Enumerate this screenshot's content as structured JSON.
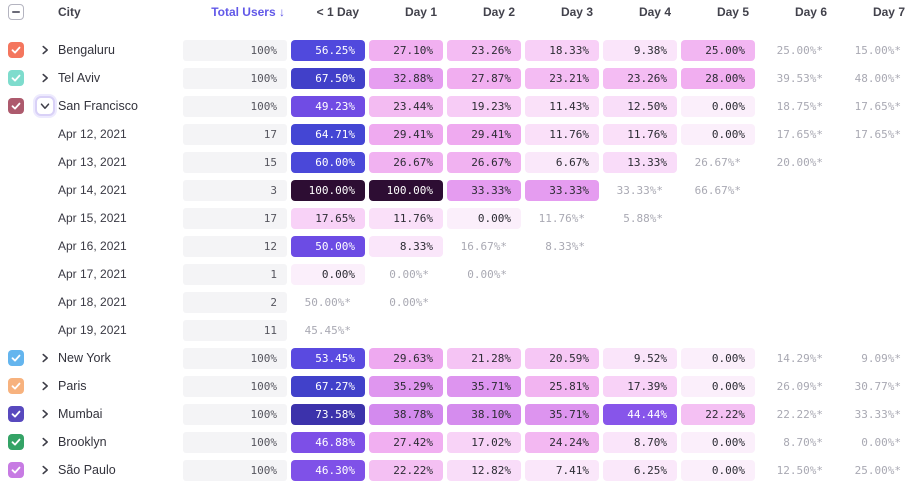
{
  "header": {
    "city": "City",
    "total_users": "Total Users",
    "sort_arrow": "↓",
    "days": [
      "< 1 Day",
      "Day 1",
      "Day 2",
      "Day 3",
      "Day 4",
      "Day 5",
      "Day 6",
      "Day 7"
    ]
  },
  "colors": {
    "sort_accent": "#6158e8",
    "total_bg": "#f4f4f6",
    "estimate_text": "#a9a9b3",
    "dark_cell_text": "#2c2c34",
    "light_cell_text": "#ffffff",
    "scale_stops": [
      [
        0,
        251,
        239,
        251
      ],
      [
        10,
        250,
        228,
        250
      ],
      [
        18,
        248,
        209,
        247
      ],
      [
        24,
        243,
        185,
        242
      ],
      [
        29,
        240,
        171,
        240
      ],
      [
        34,
        227,
        154,
        240
      ],
      [
        39,
        210,
        137,
        238
      ],
      [
        43,
        141,
        88,
        235
      ],
      [
        48,
        120,
        77,
        230
      ],
      [
        52,
        95,
        75,
        225
      ],
      [
        57,
        77,
        73,
        220
      ],
      [
        65,
        68,
        70,
        212
      ],
      [
        70,
        62,
        58,
        190
      ],
      [
        76,
        59,
        45,
        158
      ],
      [
        100,
        45,
        13,
        51
      ]
    ],
    "white_text_threshold": 42.5
  },
  "rows": [
    {
      "type": "city",
      "label": "Bengaluru",
      "checkbox_color": "#f4765e",
      "checked": true,
      "expanded": false,
      "total": "100%",
      "cells": [
        {
          "text": "56.25%",
          "value": 56.25,
          "style": "filled"
        },
        {
          "text": "27.10%",
          "value": 27.1,
          "style": "filled"
        },
        {
          "text": "23.26%",
          "value": 23.26,
          "style": "filled"
        },
        {
          "text": "18.33%",
          "value": 18.33,
          "style": "filled"
        },
        {
          "text": "9.38%",
          "value": 9.38,
          "style": "filled"
        },
        {
          "text": "25.00%",
          "value": 25.0,
          "style": "filled"
        },
        {
          "text": "25.00%*",
          "style": "estimate"
        },
        {
          "text": "15.00%*",
          "style": "estimate"
        }
      ]
    },
    {
      "type": "city",
      "label": "Tel Aviv",
      "checkbox_color": "#7edccd",
      "checked": true,
      "expanded": false,
      "total": "100%",
      "cells": [
        {
          "text": "67.50%",
          "value": 67.5,
          "style": "filled"
        },
        {
          "text": "32.88%",
          "value": 32.88,
          "style": "filled"
        },
        {
          "text": "27.87%",
          "value": 27.87,
          "style": "filled"
        },
        {
          "text": "23.21%",
          "value": 23.21,
          "style": "filled"
        },
        {
          "text": "23.26%",
          "value": 23.26,
          "style": "filled"
        },
        {
          "text": "28.00%",
          "value": 28.0,
          "style": "filled"
        },
        {
          "text": "39.53%*",
          "style": "estimate"
        },
        {
          "text": "48.00%*",
          "style": "estimate"
        }
      ]
    },
    {
      "type": "city",
      "label": "San Francisco",
      "checkbox_color": "#ad5a6d",
      "checked": true,
      "expanded": true,
      "total": "100%",
      "cells": [
        {
          "text": "49.23%",
          "value": 49.23,
          "style": "filled"
        },
        {
          "text": "23.44%",
          "value": 23.44,
          "style": "filled"
        },
        {
          "text": "19.23%",
          "value": 19.23,
          "style": "filled"
        },
        {
          "text": "11.43%",
          "value": 11.43,
          "style": "filled"
        },
        {
          "text": "12.50%",
          "value": 12.5,
          "style": "filled"
        },
        {
          "text": "0.00%",
          "value": 0,
          "style": "filled"
        },
        {
          "text": "18.75%*",
          "style": "estimate"
        },
        {
          "text": "17.65%*",
          "style": "estimate"
        }
      ]
    },
    {
      "type": "date",
      "label": "Apr 12, 2021",
      "total": "17",
      "cells": [
        {
          "text": "64.71%",
          "value": 64.71,
          "style": "filled"
        },
        {
          "text": "29.41%",
          "value": 29.41,
          "style": "filled"
        },
        {
          "text": "29.41%",
          "value": 29.41,
          "style": "filled"
        },
        {
          "text": "11.76%",
          "value": 11.76,
          "style": "filled"
        },
        {
          "text": "11.76%",
          "value": 11.76,
          "style": "filled"
        },
        {
          "text": "0.00%",
          "value": 0,
          "style": "filled"
        },
        {
          "text": "17.65%*",
          "style": "estimate"
        },
        {
          "text": "17.65%*",
          "style": "estimate"
        }
      ]
    },
    {
      "type": "date",
      "label": "Apr 13, 2021",
      "total": "15",
      "cells": [
        {
          "text": "60.00%",
          "value": 60.0,
          "style": "filled"
        },
        {
          "text": "26.67%",
          "value": 26.67,
          "style": "filled"
        },
        {
          "text": "26.67%",
          "value": 26.67,
          "style": "filled"
        },
        {
          "text": "6.67%",
          "value": 6.67,
          "style": "filled"
        },
        {
          "text": "13.33%",
          "value": 13.33,
          "style": "filled"
        },
        {
          "text": "26.67%*",
          "style": "estimate"
        },
        {
          "text": "20.00%*",
          "style": "estimate"
        },
        {
          "style": "empty"
        }
      ]
    },
    {
      "type": "date",
      "label": "Apr 14, 2021",
      "total": "3",
      "cells": [
        {
          "text": "100.00%",
          "value": 100,
          "style": "filled"
        },
        {
          "text": "100.00%",
          "value": 100,
          "style": "filled"
        },
        {
          "text": "33.33%",
          "value": 33.33,
          "style": "filled"
        },
        {
          "text": "33.33%",
          "value": 33.33,
          "style": "filled"
        },
        {
          "text": "33.33%*",
          "style": "estimate"
        },
        {
          "text": "66.67%*",
          "style": "estimate"
        },
        {
          "style": "empty"
        },
        {
          "style": "empty"
        }
      ]
    },
    {
      "type": "date",
      "label": "Apr 15, 2021",
      "total": "17",
      "cells": [
        {
          "text": "17.65%",
          "value": 17.65,
          "style": "filled"
        },
        {
          "text": "11.76%",
          "value": 11.76,
          "style": "filled"
        },
        {
          "text": "0.00%",
          "value": 0,
          "style": "filled"
        },
        {
          "text": "11.76%*",
          "style": "estimate"
        },
        {
          "text": "5.88%*",
          "style": "estimate"
        },
        {
          "style": "empty"
        },
        {
          "style": "empty"
        },
        {
          "style": "empty"
        }
      ]
    },
    {
      "type": "date",
      "label": "Apr 16, 2021",
      "total": "12",
      "cells": [
        {
          "text": "50.00%",
          "value": 50.0,
          "style": "filled"
        },
        {
          "text": "8.33%",
          "value": 8.33,
          "style": "filled"
        },
        {
          "text": "16.67%*",
          "style": "estimate"
        },
        {
          "text": "8.33%*",
          "style": "estimate"
        },
        {
          "style": "empty"
        },
        {
          "style": "empty"
        },
        {
          "style": "empty"
        },
        {
          "style": "empty"
        }
      ]
    },
    {
      "type": "date",
      "label": "Apr 17, 2021",
      "total": "1",
      "cells": [
        {
          "text": "0.00%",
          "value": 0,
          "style": "filled"
        },
        {
          "text": "0.00%*",
          "style": "estimate"
        },
        {
          "text": "0.00%*",
          "style": "estimate"
        },
        {
          "style": "empty"
        },
        {
          "style": "empty"
        },
        {
          "style": "empty"
        },
        {
          "style": "empty"
        },
        {
          "style": "empty"
        }
      ]
    },
    {
      "type": "date",
      "label": "Apr 18, 2021",
      "total": "2",
      "cells": [
        {
          "text": "50.00%*",
          "style": "estimate"
        },
        {
          "text": "0.00%*",
          "style": "estimate"
        },
        {
          "style": "empty"
        },
        {
          "style": "empty"
        },
        {
          "style": "empty"
        },
        {
          "style": "empty"
        },
        {
          "style": "empty"
        },
        {
          "style": "empty"
        }
      ]
    },
    {
      "type": "date",
      "label": "Apr 19, 2021",
      "total": "11",
      "cells": [
        {
          "text": "45.45%*",
          "style": "estimate"
        },
        {
          "style": "empty"
        },
        {
          "style": "empty"
        },
        {
          "style": "empty"
        },
        {
          "style": "empty"
        },
        {
          "style": "empty"
        },
        {
          "style": "empty"
        },
        {
          "style": "empty"
        }
      ]
    },
    {
      "type": "city",
      "label": "New York",
      "checkbox_color": "#64b5ee",
      "checked": true,
      "expanded": false,
      "total": "100%",
      "cells": [
        {
          "text": "53.45%",
          "value": 53.45,
          "style": "filled"
        },
        {
          "text": "29.63%",
          "value": 29.63,
          "style": "filled"
        },
        {
          "text": "21.28%",
          "value": 21.28,
          "style": "filled"
        },
        {
          "text": "20.59%",
          "value": 20.59,
          "style": "filled"
        },
        {
          "text": "9.52%",
          "value": 9.52,
          "style": "filled"
        },
        {
          "text": "0.00%",
          "value": 0,
          "style": "filled"
        },
        {
          "text": "14.29%*",
          "style": "estimate"
        },
        {
          "text": "9.09%*",
          "style": "estimate"
        }
      ]
    },
    {
      "type": "city",
      "label": "Paris",
      "checkbox_color": "#f7b27e",
      "checked": true,
      "expanded": false,
      "total": "100%",
      "cells": [
        {
          "text": "67.27%",
          "value": 67.27,
          "style": "filled"
        },
        {
          "text": "35.29%",
          "value": 35.29,
          "style": "filled"
        },
        {
          "text": "35.71%",
          "value": 35.71,
          "style": "filled"
        },
        {
          "text": "25.81%",
          "value": 25.81,
          "style": "filled"
        },
        {
          "text": "17.39%",
          "value": 17.39,
          "style": "filled"
        },
        {
          "text": "0.00%",
          "value": 0,
          "style": "filled"
        },
        {
          "text": "26.09%*",
          "style": "estimate"
        },
        {
          "text": "30.77%*",
          "style": "estimate"
        }
      ]
    },
    {
      "type": "city",
      "label": "Mumbai",
      "checkbox_color": "#5849be",
      "checked": true,
      "expanded": false,
      "total": "100%",
      "cells": [
        {
          "text": "73.58%",
          "value": 73.58,
          "style": "filled"
        },
        {
          "text": "38.78%",
          "value": 38.78,
          "style": "filled"
        },
        {
          "text": "38.10%",
          "value": 38.1,
          "style": "filled"
        },
        {
          "text": "35.71%",
          "value": 35.71,
          "style": "filled"
        },
        {
          "text": "44.44%",
          "value": 44.44,
          "style": "filled"
        },
        {
          "text": "22.22%",
          "value": 22.22,
          "style": "filled"
        },
        {
          "text": "22.22%*",
          "style": "estimate"
        },
        {
          "text": "33.33%*",
          "style": "estimate"
        }
      ]
    },
    {
      "type": "city",
      "label": "Brooklyn",
      "checkbox_color": "#34a366",
      "checked": true,
      "expanded": false,
      "total": "100%",
      "cells": [
        {
          "text": "46.88%",
          "value": 46.88,
          "style": "filled"
        },
        {
          "text": "27.42%",
          "value": 27.42,
          "style": "filled"
        },
        {
          "text": "17.02%",
          "value": 17.02,
          "style": "filled"
        },
        {
          "text": "24.24%",
          "value": 24.24,
          "style": "filled"
        },
        {
          "text": "8.70%",
          "value": 8.7,
          "style": "filled"
        },
        {
          "text": "0.00%",
          "value": 0,
          "style": "filled"
        },
        {
          "text": "8.70%*",
          "style": "estimate"
        },
        {
          "text": "0.00%*",
          "style": "estimate"
        }
      ]
    },
    {
      "type": "city",
      "label": "São Paulo",
      "checkbox_color": "#c77be3",
      "checked": true,
      "expanded": false,
      "total": "100%",
      "cells": [
        {
          "text": "46.30%",
          "value": 46.3,
          "style": "filled"
        },
        {
          "text": "22.22%",
          "value": 22.22,
          "style": "filled"
        },
        {
          "text": "12.82%",
          "value": 12.82,
          "style": "filled"
        },
        {
          "text": "7.41%",
          "value": 7.41,
          "style": "filled"
        },
        {
          "text": "6.25%",
          "value": 6.25,
          "style": "filled"
        },
        {
          "text": "0.00%",
          "value": 0,
          "style": "filled"
        },
        {
          "text": "12.50%*",
          "style": "estimate"
        },
        {
          "text": "25.00%*",
          "style": "estimate"
        }
      ]
    }
  ]
}
